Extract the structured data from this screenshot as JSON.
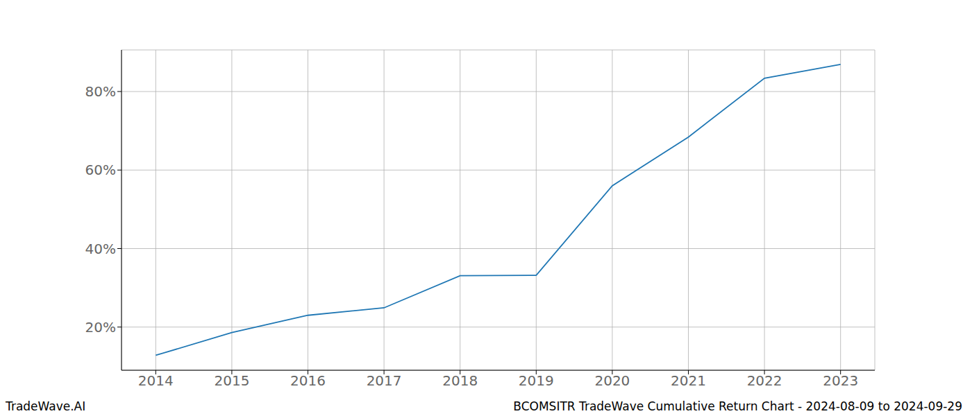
{
  "chart_data": {
    "type": "line",
    "title": "BCOMSITR TradeWave Cumulative Return Chart - 2024-08-09 to 2024-09-29",
    "source": "TradeWave.AI",
    "x": [
      2014,
      2015,
      2016,
      2017,
      2018,
      2019,
      2020,
      2021,
      2022,
      2023
    ],
    "series": [
      {
        "name": "BCOMSITR",
        "color": "#1f77b4",
        "values": [
          12.8,
          18.6,
          23.0,
          24.9,
          33.1,
          33.2,
          56.0,
          68.4,
          83.4,
          86.9
        ]
      }
    ],
    "xlim": [
      2013.55,
      2023.45
    ],
    "xticks": [
      2014,
      2015,
      2016,
      2017,
      2018,
      2019,
      2020,
      2021,
      2022,
      2023
    ],
    "ylim": [
      9,
      90.6
    ],
    "yticks": [
      {
        "value": 20,
        "label": "20%"
      },
      {
        "value": 40,
        "label": "40%"
      },
      {
        "value": 60,
        "label": "60%"
      },
      {
        "value": 80,
        "label": "80%"
      }
    ],
    "grid": true
  }
}
